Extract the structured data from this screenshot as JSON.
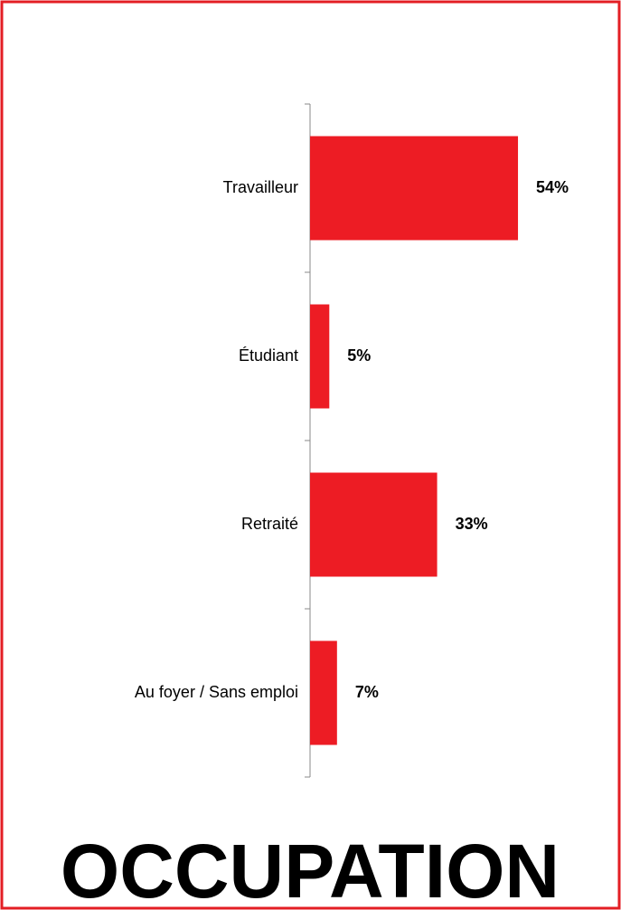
{
  "chart_data": {
    "type": "barh",
    "title": "OCCUPATION",
    "categories": [
      "Travailleur",
      "Étudiant",
      "Retraité",
      "Au foyer / Sans emploi"
    ],
    "values": [
      54,
      5,
      33,
      7
    ],
    "value_labels": [
      "54%",
      "5%",
      "33%",
      "7%"
    ],
    "color": "#ed1c24"
  }
}
